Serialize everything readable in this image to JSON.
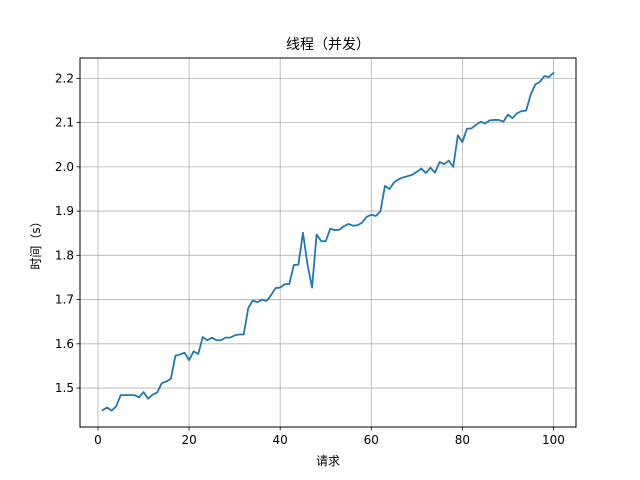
{
  "chart_data": {
    "type": "line",
    "title": "线程（并发）",
    "xlabel": "请求",
    "ylabel": "时间（s）",
    "xlim": [
      -3.95,
      104.95
    ],
    "ylim": [
      1.412,
      2.246
    ],
    "x_ticks": [
      0,
      20,
      40,
      60,
      80,
      100
    ],
    "x_tick_labels": [
      "0",
      "20",
      "40",
      "60",
      "80",
      "100"
    ],
    "y_ticks": [
      1.5,
      1.6,
      1.7,
      1.8,
      1.9,
      2.0,
      2.1,
      2.2
    ],
    "y_tick_labels": [
      "1.5",
      "1.6",
      "1.7",
      "1.8",
      "1.9",
      "2.0",
      "2.1",
      "2.2"
    ],
    "grid": true,
    "series": [
      {
        "color": "#1f77b4",
        "x": [
          1,
          2,
          3,
          4,
          5,
          6,
          7,
          8,
          9,
          10,
          11,
          12,
          13,
          14,
          15,
          16,
          17,
          18,
          19,
          20,
          21,
          22,
          23,
          24,
          25,
          26,
          27,
          28,
          29,
          30,
          31,
          32,
          33,
          34,
          35,
          36,
          37,
          38,
          39,
          40,
          41,
          42,
          43,
          44,
          45,
          46,
          47,
          48,
          49,
          50,
          51,
          52,
          53,
          54,
          55,
          56,
          57,
          58,
          59,
          60,
          61,
          62,
          63,
          64,
          65,
          66,
          67,
          68,
          69,
          70,
          71,
          72,
          73,
          74,
          75,
          76,
          77,
          78,
          79,
          80,
          81,
          82,
          83,
          84,
          85,
          86,
          87,
          88,
          89,
          90,
          91,
          92,
          93,
          94,
          95,
          96,
          97,
          98,
          99,
          100
        ],
        "values": [
          1.45,
          1.456,
          1.449,
          1.459,
          1.484,
          1.484,
          1.484,
          1.484,
          1.479,
          1.491,
          1.476,
          1.485,
          1.49,
          1.511,
          1.515,
          1.521,
          1.573,
          1.576,
          1.58,
          1.563,
          1.583,
          1.577,
          1.615,
          1.608,
          1.614,
          1.608,
          1.608,
          1.614,
          1.614,
          1.619,
          1.621,
          1.621,
          1.681,
          1.698,
          1.694,
          1.7,
          1.697,
          1.71,
          1.726,
          1.727,
          1.735,
          1.735,
          1.778,
          1.779,
          1.851,
          1.779,
          1.727,
          1.847,
          1.832,
          1.832,
          1.86,
          1.857,
          1.858,
          1.866,
          1.871,
          1.867,
          1.868,
          1.874,
          1.887,
          1.892,
          1.889,
          1.899,
          1.957,
          1.95,
          1.965,
          1.972,
          1.976,
          1.979,
          1.982,
          1.989,
          1.996,
          1.986,
          1.998,
          1.987,
          2.011,
          2.006,
          2.014,
          2.0,
          2.071,
          2.056,
          2.086,
          2.087,
          2.095,
          2.102,
          2.098,
          2.105,
          2.106,
          2.106,
          2.102,
          2.118,
          2.11,
          2.121,
          2.126,
          2.127,
          2.163,
          2.186,
          2.192,
          2.205,
          2.203,
          2.212
        ]
      }
    ]
  }
}
